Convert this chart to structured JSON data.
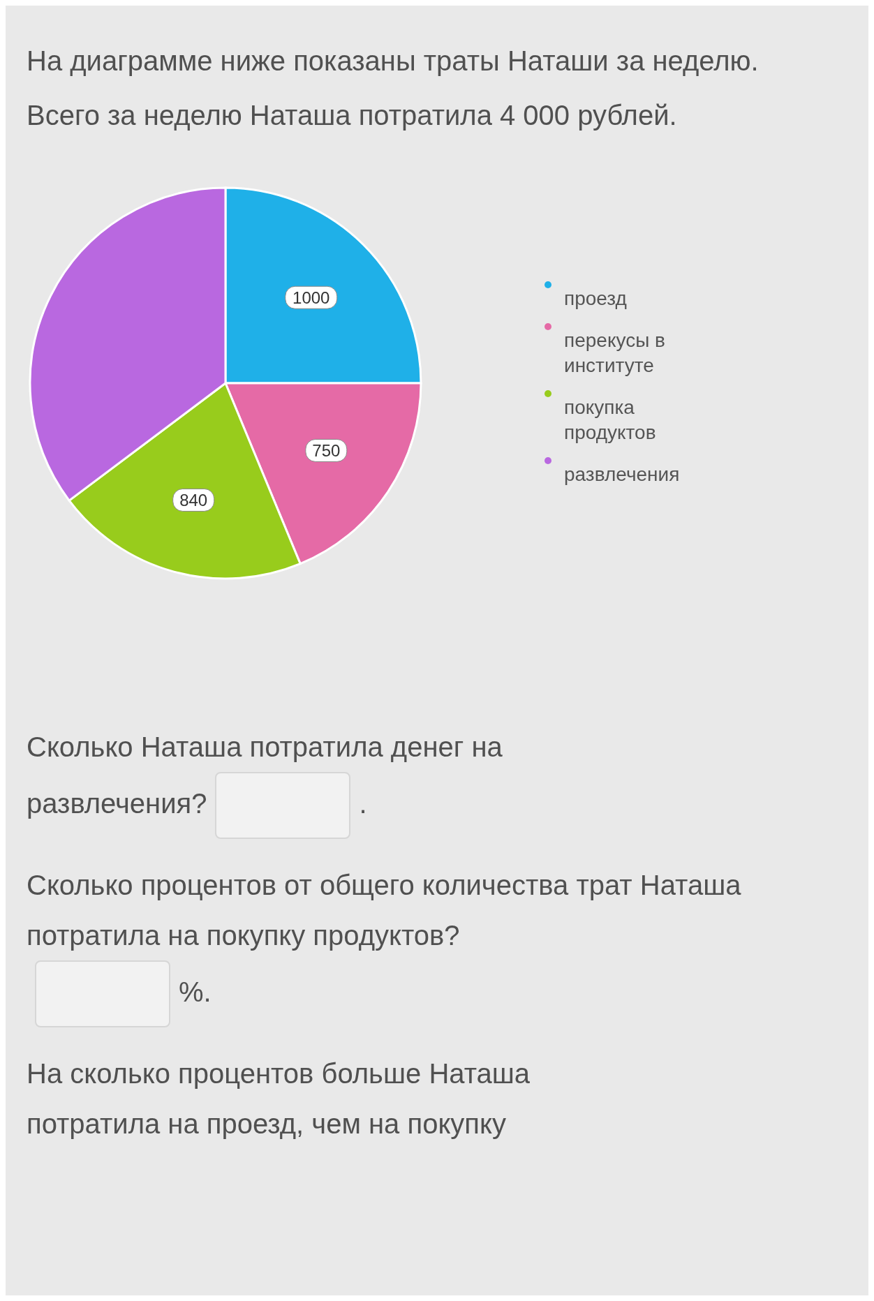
{
  "chart_data": {
    "type": "pie",
    "title": "На диаграмме ниже показаны траты Наташи за неделю. Всего за неделю Наташа потратила 4 000 рублей.",
    "categories": [
      "проезд",
      "перекусы в институте",
      "покупка продуктов",
      "развлечения"
    ],
    "values": [
      1000,
      750,
      840,
      1410
    ],
    "value_labels": [
      "1000",
      "750",
      "840",
      null
    ],
    "colors": [
      "#1fb0e8",
      "#e56aa6",
      "#98cc1c",
      "#b968e0"
    ],
    "legend": "right",
    "annotations": [
      "Сколько Наташа потратила денег на развлечения?",
      ".",
      "Сколько процентов от общего количества трат Наташа потратила на покупку продуктов?",
      "%.",
      "На сколько процентов больше Наташа потратила на проезд, чем на покупку"
    ]
  }
}
